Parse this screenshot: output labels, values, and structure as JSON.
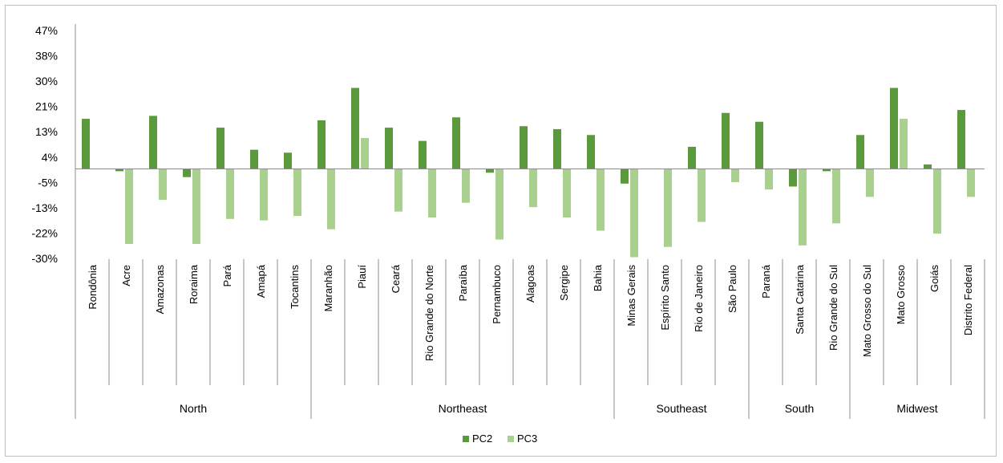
{
  "chart_data": {
    "type": "bar",
    "title": "",
    "xlabel": "",
    "ylabel": "",
    "ylim": [
      -30,
      47
    ],
    "y_ticks": [
      "47%",
      "38%",
      "30%",
      "21%",
      "13%",
      "4%",
      "-5%",
      "-13%",
      "-22%",
      "-30%"
    ],
    "y_tick_values": [
      47,
      38.4,
      29.8,
      21.2,
      12.6,
      4,
      -4.6,
      -13.2,
      -21.8,
      -30.4
    ],
    "categories": [
      "Rondônia",
      "Acre",
      "Amazonas",
      "Roraima",
      "Pará",
      "Amapá",
      "Tocantins",
      "Maranhão",
      "Piauí",
      "Ceará",
      "Rio Grande do Norte",
      "Paraíba",
      "Pernambuco",
      "Alagoas",
      "Sergipe",
      "Bahia",
      "Minas Gerais",
      "Espírito Santo",
      "Rio de Janeiro",
      "São Paulo",
      "Paraná",
      "Santa Catarina",
      "Rio Grande do Sul",
      "Mato Grosso do Sul",
      "Mato Grosso",
      "Goiás",
      "Distrito Federal"
    ],
    "groups": [
      {
        "name": "North",
        "count": 7
      },
      {
        "name": "Northeast",
        "count": 9
      },
      {
        "name": "Southeast",
        "count": 4
      },
      {
        "name": "South",
        "count": 3
      },
      {
        "name": "Midwest",
        "count": 4
      }
    ],
    "series": [
      {
        "name": "PC2",
        "color": "#5a9a3c",
        "values": [
          17,
          -0.8,
          18,
          -2.8,
          14,
          6.5,
          5.5,
          16.5,
          27.5,
          14,
          9.5,
          17.5,
          -1.3,
          14.5,
          13.5,
          11.5,
          -5,
          0,
          7.5,
          19,
          16,
          -6,
          -0.8,
          11.5,
          27.5,
          1.5,
          20
        ]
      },
      {
        "name": "PC3",
        "color": "#a9d08e",
        "values": [
          0,
          -25.5,
          -10.5,
          -25.5,
          -17,
          -17.5,
          -16,
          -20.5,
          10.5,
          -14.5,
          -16.5,
          -11.5,
          -24,
          -13,
          -16.5,
          -21,
          -30,
          -26.5,
          -18,
          -4.5,
          -7,
          -26,
          -18.5,
          -9.5,
          17,
          -22,
          -9.5
        ]
      }
    ],
    "legend_position": "bottom",
    "grid": false
  }
}
